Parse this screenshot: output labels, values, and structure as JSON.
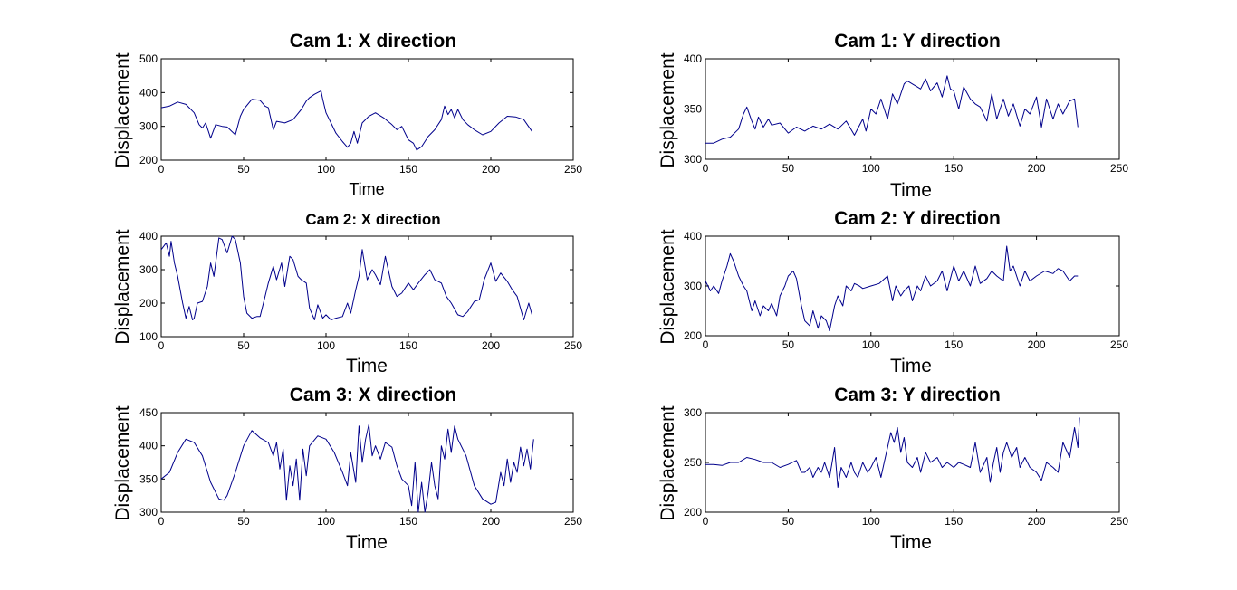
{
  "chart_data": [
    {
      "type": "line",
      "title": "Cam 1: X direction",
      "xlabel": "Time",
      "ylabel": "Displacement",
      "xlim": [
        0,
        250
      ],
      "ylim": [
        200,
        500
      ],
      "xticks": [
        0,
        50,
        100,
        150,
        200,
        250
      ],
      "yticks": [
        200,
        300,
        400,
        500
      ],
      "grid": false,
      "line_color": "#00008b",
      "series": [
        {
          "x": [
            0,
            5,
            10,
            15,
            20,
            23,
            25,
            27,
            30,
            33,
            37,
            40,
            45,
            48,
            50,
            55,
            60,
            63,
            65,
            68,
            70,
            75,
            80,
            85,
            88,
            90,
            93,
            95,
            97,
            98,
            100,
            103,
            106,
            110,
            113,
            115,
            117,
            119,
            122,
            126,
            130,
            135,
            140,
            143,
            146,
            150,
            153,
            155,
            158,
            162,
            166,
            170,
            172,
            174,
            176,
            178,
            180,
            183,
            186,
            190,
            195,
            200,
            205,
            210,
            215,
            220,
            225
          ],
          "y": [
            355,
            360,
            372,
            365,
            340,
            305,
            295,
            310,
            265,
            305,
            300,
            298,
            275,
            330,
            350,
            380,
            377,
            360,
            355,
            290,
            315,
            310,
            320,
            350,
            375,
            385,
            395,
            400,
            405,
            380,
            340,
            310,
            280,
            255,
            238,
            250,
            285,
            250,
            310,
            330,
            340,
            325,
            305,
            290,
            300,
            260,
            250,
            230,
            240,
            270,
            290,
            320,
            360,
            335,
            350,
            325,
            350,
            320,
            305,
            290,
            275,
            285,
            310,
            330,
            328,
            320,
            285
          ]
        }
      ]
    },
    {
      "type": "line",
      "title": "Cam 1: Y direction",
      "xlabel": "Time",
      "ylabel": "Displacement",
      "xlim": [
        0,
        250
      ],
      "ylim": [
        300,
        400
      ],
      "xticks": [
        0,
        50,
        100,
        150,
        200,
        250
      ],
      "yticks": [
        300,
        350,
        400
      ],
      "grid": false,
      "line_color": "#00008b",
      "series": [
        {
          "x": [
            0,
            5,
            10,
            15,
            20,
            23,
            25,
            28,
            30,
            32,
            35,
            38,
            40,
            45,
            50,
            55,
            60,
            65,
            70,
            75,
            80,
            85,
            90,
            95,
            97,
            100,
            103,
            106,
            110,
            113,
            116,
            120,
            122,
            125,
            128,
            130,
            133,
            136,
            140,
            143,
            146,
            148,
            150,
            153,
            156,
            160,
            163,
            166,
            170,
            173,
            176,
            180,
            183,
            186,
            190,
            193,
            196,
            200,
            203,
            206,
            210,
            213,
            216,
            220,
            223,
            225
          ],
          "y": [
            316,
            316,
            320,
            322,
            330,
            345,
            352,
            338,
            330,
            342,
            332,
            340,
            334,
            336,
            326,
            332,
            328,
            333,
            330,
            335,
            330,
            338,
            324,
            340,
            328,
            350,
            345,
            360,
            340,
            365,
            355,
            375,
            378,
            375,
            372,
            370,
            380,
            368,
            376,
            362,
            383,
            370,
            368,
            350,
            372,
            360,
            355,
            352,
            338,
            365,
            340,
            360,
            343,
            355,
            333,
            350,
            345,
            362,
            332,
            360,
            340,
            355,
            345,
            358,
            360,
            332
          ]
        }
      ]
    },
    {
      "type": "line",
      "title": "Cam 2: X direction",
      "xlabel": "Time",
      "ylabel": "Displacement",
      "xlim": [
        0,
        250
      ],
      "ylim": [
        100,
        400
      ],
      "xticks": [
        0,
        50,
        100,
        150,
        200,
        250
      ],
      "yticks": [
        100,
        200,
        300,
        400
      ],
      "grid": false,
      "line_color": "#00008b",
      "series": [
        {
          "x": [
            0,
            3,
            5,
            6,
            8,
            10,
            13,
            15,
            17,
            19,
            20,
            22,
            25,
            28,
            30,
            32,
            35,
            37,
            40,
            43,
            45,
            48,
            50,
            52,
            55,
            58,
            60,
            63,
            65,
            68,
            70,
            73,
            75,
            78,
            80,
            83,
            85,
            88,
            90,
            93,
            95,
            98,
            100,
            103,
            106,
            110,
            113,
            115,
            118,
            120,
            122,
            125,
            128,
            130,
            133,
            136,
            140,
            143,
            146,
            150,
            153,
            156,
            160,
            163,
            166,
            170,
            173,
            176,
            180,
            183,
            186,
            190,
            193,
            196,
            200,
            203,
            206,
            210,
            213,
            216,
            220,
            223,
            225
          ],
          "y": [
            360,
            380,
            340,
            385,
            320,
            280,
            200,
            155,
            190,
            150,
            155,
            200,
            205,
            250,
            320,
            280,
            395,
            390,
            350,
            400,
            390,
            320,
            220,
            170,
            155,
            160,
            160,
            220,
            260,
            310,
            270,
            320,
            250,
            340,
            330,
            280,
            270,
            260,
            185,
            150,
            195,
            155,
            165,
            150,
            155,
            160,
            200,
            170,
            240,
            280,
            360,
            270,
            300,
            285,
            255,
            340,
            250,
            220,
            230,
            260,
            240,
            260,
            285,
            300,
            270,
            260,
            220,
            200,
            165,
            160,
            175,
            205,
            210,
            270,
            320,
            265,
            290,
            265,
            240,
            220,
            150,
            200,
            165
          ]
        }
      ]
    },
    {
      "type": "line",
      "title": "Cam 2: Y direction",
      "xlabel": "Time",
      "ylabel": "Displacement",
      "xlim": [
        0,
        250
      ],
      "ylim": [
        200,
        400
      ],
      "xticks": [
        0,
        50,
        100,
        150,
        200,
        250
      ],
      "yticks": [
        200,
        300,
        400
      ],
      "grid": false,
      "line_color": "#00008b",
      "series": [
        {
          "x": [
            0,
            3,
            5,
            8,
            10,
            13,
            15,
            17,
            20,
            23,
            25,
            28,
            30,
            33,
            35,
            38,
            40,
            43,
            45,
            48,
            50,
            53,
            55,
            58,
            60,
            63,
            65,
            68,
            70,
            73,
            75,
            78,
            80,
            83,
            85,
            88,
            90,
            93,
            95,
            100,
            105,
            110,
            113,
            115,
            118,
            120,
            123,
            125,
            128,
            130,
            133,
            136,
            140,
            143,
            146,
            150,
            153,
            156,
            160,
            163,
            166,
            170,
            173,
            176,
            180,
            182,
            184,
            186,
            190,
            193,
            196,
            200,
            205,
            210,
            213,
            216,
            220,
            223,
            225
          ],
          "y": [
            310,
            290,
            300,
            285,
            310,
            340,
            365,
            350,
            320,
            300,
            290,
            250,
            270,
            240,
            260,
            250,
            265,
            240,
            280,
            300,
            320,
            330,
            315,
            260,
            230,
            220,
            250,
            215,
            240,
            230,
            210,
            260,
            280,
            260,
            300,
            290,
            305,
            300,
            295,
            300,
            305,
            320,
            270,
            300,
            280,
            290,
            300,
            270,
            300,
            290,
            320,
            300,
            310,
            330,
            290,
            340,
            310,
            330,
            300,
            340,
            305,
            315,
            330,
            320,
            310,
            380,
            330,
            340,
            300,
            330,
            310,
            320,
            330,
            325,
            335,
            330,
            310,
            320,
            320
          ]
        }
      ]
    },
    {
      "type": "line",
      "title": "Cam 3: X direction",
      "xlabel": "Time",
      "ylabel": "Displacement",
      "xlim": [
        0,
        250
      ],
      "ylim": [
        300,
        450
      ],
      "xticks": [
        0,
        50,
        100,
        150,
        200,
        250
      ],
      "yticks": [
        300,
        350,
        400,
        450
      ],
      "grid": false,
      "line_color": "#00008b",
      "series": [
        {
          "x": [
            0,
            5,
            10,
            15,
            20,
            25,
            30,
            35,
            38,
            40,
            45,
            50,
            55,
            60,
            65,
            68,
            70,
            72,
            74,
            76,
            78,
            80,
            82,
            84,
            86,
            88,
            90,
            95,
            100,
            105,
            110,
            113,
            115,
            118,
            120,
            122,
            124,
            126,
            128,
            130,
            133,
            136,
            140,
            143,
            146,
            150,
            152,
            154,
            156,
            158,
            160,
            162,
            164,
            166,
            168,
            170,
            172,
            174,
            176,
            178,
            180,
            185,
            190,
            195,
            200,
            203,
            206,
            208,
            210,
            212,
            214,
            216,
            218,
            220,
            222,
            224,
            226
          ],
          "y": [
            350,
            360,
            390,
            410,
            405,
            385,
            345,
            320,
            318,
            325,
            360,
            400,
            423,
            412,
            405,
            385,
            405,
            365,
            395,
            318,
            370,
            340,
            380,
            318,
            395,
            355,
            400,
            415,
            410,
            390,
            360,
            340,
            390,
            345,
            430,
            375,
            410,
            432,
            385,
            400,
            380,
            405,
            398,
            370,
            350,
            340,
            310,
            375,
            300,
            345,
            300,
            330,
            375,
            340,
            320,
            400,
            380,
            425,
            390,
            430,
            410,
            385,
            340,
            320,
            312,
            315,
            360,
            340,
            380,
            345,
            375,
            360,
            398,
            370,
            395,
            365,
            410
          ]
        }
      ]
    },
    {
      "type": "line",
      "title": "Cam 3: Y direction",
      "xlabel": "Time",
      "ylabel": "Displacement",
      "xlim": [
        0,
        250
      ],
      "ylim": [
        200,
        300
      ],
      "xticks": [
        0,
        50,
        100,
        150,
        200,
        250
      ],
      "yticks": [
        200,
        250,
        300
      ],
      "grid": false,
      "line_color": "#00008b",
      "series": [
        {
          "x": [
            0,
            5,
            10,
            15,
            20,
            25,
            30,
            35,
            40,
            45,
            50,
            55,
            58,
            60,
            63,
            65,
            68,
            70,
            72,
            75,
            77,
            78,
            80,
            82,
            85,
            88,
            90,
            92,
            95,
            98,
            100,
            103,
            106,
            108,
            110,
            112,
            114,
            116,
            118,
            120,
            122,
            125,
            128,
            130,
            133,
            136,
            140,
            143,
            146,
            150,
            153,
            156,
            160,
            163,
            166,
            170,
            172,
            174,
            176,
            178,
            180,
            182,
            185,
            188,
            190,
            193,
            196,
            200,
            203,
            206,
            210,
            213,
            216,
            220,
            223,
            225,
            226
          ],
          "y": [
            248,
            248,
            247,
            250,
            250,
            255,
            253,
            250,
            250,
            245,
            248,
            252,
            240,
            240,
            245,
            235,
            245,
            240,
            250,
            235,
            255,
            265,
            225,
            245,
            235,
            250,
            240,
            235,
            250,
            240,
            245,
            255,
            235,
            250,
            265,
            280,
            270,
            285,
            260,
            275,
            250,
            245,
            255,
            240,
            260,
            250,
            255,
            245,
            250,
            245,
            250,
            248,
            245,
            270,
            240,
            255,
            230,
            250,
            265,
            240,
            260,
            270,
            255,
            265,
            245,
            255,
            245,
            240,
            232,
            250,
            245,
            240,
            270,
            255,
            285,
            265,
            295
          ]
        }
      ]
    }
  ]
}
